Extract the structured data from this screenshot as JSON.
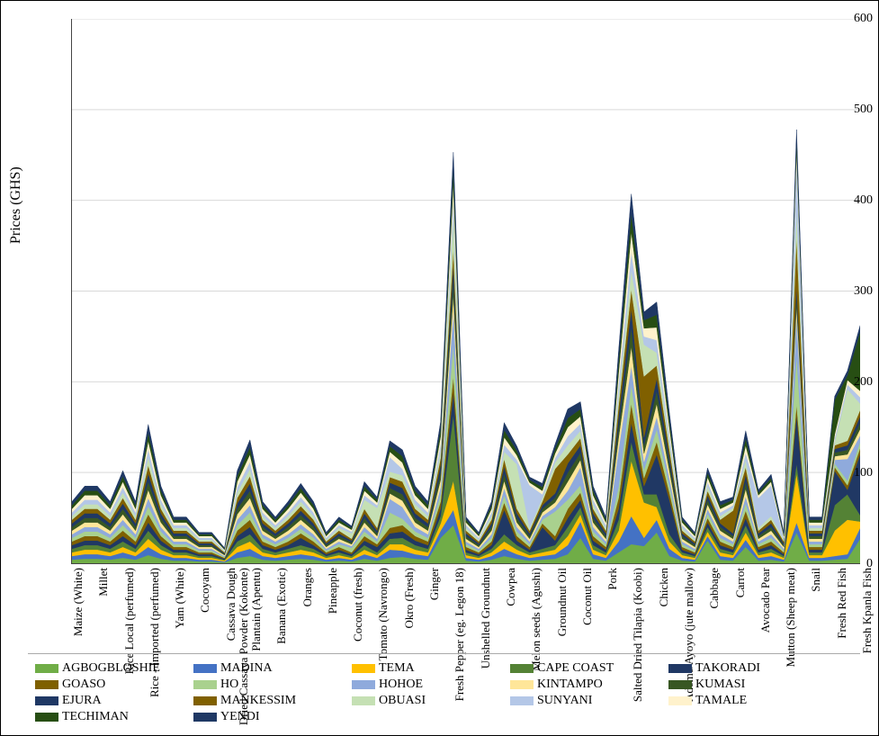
{
  "chart": {
    "type": "stacked-area",
    "y_axis": {
      "title": "Prices  (GHS)",
      "min": 0,
      "max": 600,
      "ticks": [
        0,
        100,
        200,
        300,
        400,
        500,
        600
      ],
      "title_fontsize": 16,
      "tick_fontsize": 14
    },
    "x_axis": {
      "tick_rotation": -90,
      "tick_fontsize": 13
    },
    "background_color": "#ffffff",
    "grid_color": "#d9d9d9",
    "categories": [
      "Maize (White)",
      "",
      "Millet",
      "",
      "Rice Local (perfumed)",
      "",
      "Rice - Imported (perfumed)",
      "",
      "Yam (White)",
      "",
      "Cocoyam",
      "",
      "Cassava Dough",
      "Dried Cassava Powder (Kokonte)",
      "Plantain (Apentu)",
      "",
      "Banana (Exotic)",
      "",
      "Oranges",
      "",
      "Pineapple",
      "",
      "Coconut (fresh)",
      "",
      "Tomato (Navrongo)",
      "",
      "Okro (Fresh)",
      "",
      "Ginger",
      "",
      "Fresh Pepper (eg. Legon 18)",
      "",
      "Unshelled Groundnut",
      "",
      "Cowpea",
      "",
      "Melon seeds (Agushi)",
      "",
      "Groundnut Oil",
      "",
      "Coconut Oil",
      "",
      "Pork",
      "",
      "Salted Dried Tilapia (Koobi)",
      "",
      "Chicken",
      "",
      "Ademe/Ayoyo (jute mallow)",
      "",
      "Cabbage",
      "",
      "Carrot",
      "",
      "Avocado Pear",
      "",
      "Mutton (Sheep meat)",
      "",
      "Snail",
      "",
      "Fresh Red Fish",
      "",
      "Fresh Kpanla Fish"
    ],
    "series": [
      {
        "name": "AGBOGBLOSHIE",
        "color": "#70ad47",
        "marker": "square",
        "values": [
          4,
          5,
          5,
          4,
          6,
          4,
          9,
          5,
          3,
          3,
          2,
          2,
          1,
          6,
          8,
          4,
          3,
          4,
          5,
          4,
          2,
          3,
          2,
          5,
          3,
          6,
          7,
          5,
          4,
          28,
          42,
          3,
          2,
          4,
          8,
          5,
          3,
          4,
          5,
          10,
          28,
          5,
          3,
          12,
          21,
          19,
          34,
          8,
          3,
          2,
          25,
          4,
          3,
          18,
          3,
          4,
          2,
          34,
          3,
          3,
          4,
          5,
          27
        ]
      },
      {
        "name": "MADINA",
        "color": "#4472c4",
        "marker": "square",
        "values": [
          4,
          5,
          5,
          4,
          6,
          4,
          9,
          5,
          3,
          3,
          2,
          2,
          1,
          6,
          8,
          4,
          3,
          4,
          5,
          4,
          2,
          3,
          2,
          5,
          3,
          9,
          7,
          5,
          4,
          8,
          17,
          3,
          2,
          4,
          8,
          5,
          3,
          4,
          5,
          10,
          18,
          5,
          3,
          12,
          31,
          9,
          14,
          8,
          3,
          2,
          5,
          4,
          3,
          8,
          3,
          4,
          2,
          11,
          3,
          3,
          4,
          5,
          12
        ]
      },
      {
        "name": "TEMA",
        "color": "#ffc000",
        "marker": "square",
        "values": [
          4,
          5,
          5,
          4,
          6,
          4,
          9,
          5,
          3,
          3,
          2,
          2,
          1,
          6,
          8,
          4,
          3,
          4,
          5,
          4,
          2,
          3,
          2,
          5,
          3,
          6,
          7,
          5,
          4,
          8,
          32,
          3,
          2,
          4,
          8,
          5,
          3,
          4,
          5,
          10,
          8,
          5,
          3,
          12,
          61,
          39,
          14,
          8,
          3,
          2,
          5,
          4,
          3,
          8,
          3,
          4,
          2,
          54,
          3,
          3,
          28,
          38,
          7
        ]
      },
      {
        "name": "CAPE COAST",
        "color": "#548235",
        "marker": "square",
        "values": [
          4,
          5,
          5,
          4,
          6,
          4,
          9,
          5,
          3,
          3,
          2,
          2,
          1,
          6,
          8,
          4,
          3,
          4,
          5,
          4,
          2,
          3,
          2,
          5,
          3,
          6,
          7,
          5,
          4,
          8,
          73,
          3,
          2,
          4,
          8,
          5,
          3,
          4,
          5,
          10,
          8,
          5,
          3,
          12,
          21,
          9,
          14,
          8,
          3,
          2,
          5,
          4,
          3,
          8,
          3,
          4,
          2,
          11,
          3,
          3,
          28,
          28,
          7
        ]
      },
      {
        "name": "TAKORADI",
        "color": "#203864",
        "marker": "square",
        "values": [
          4,
          5,
          5,
          4,
          6,
          4,
          9,
          5,
          3,
          3,
          2,
          2,
          1,
          6,
          8,
          4,
          3,
          4,
          8,
          4,
          2,
          3,
          2,
          5,
          6,
          6,
          7,
          5,
          4,
          8,
          25,
          3,
          2,
          4,
          27,
          5,
          3,
          24,
          5,
          10,
          8,
          5,
          3,
          12,
          21,
          9,
          44,
          38,
          3,
          2,
          5,
          4,
          3,
          8,
          3,
          4,
          2,
          54,
          3,
          3,
          38,
          5,
          67
        ]
      },
      {
        "name": "GOASO",
        "color": "#7f6000",
        "marker": "square",
        "values": [
          4,
          5,
          5,
          4,
          6,
          4,
          9,
          5,
          3,
          3,
          2,
          2,
          1,
          6,
          8,
          4,
          3,
          4,
          5,
          4,
          2,
          3,
          2,
          5,
          3,
          6,
          7,
          5,
          4,
          8,
          17,
          3,
          2,
          4,
          8,
          5,
          3,
          4,
          5,
          10,
          8,
          5,
          3,
          12,
          21,
          9,
          14,
          8,
          3,
          2,
          5,
          4,
          3,
          8,
          3,
          4,
          2,
          11,
          3,
          3,
          4,
          5,
          7
        ]
      },
      {
        "name": "HO",
        "color": "#a9d18e",
        "marker": "square",
        "values": [
          4,
          5,
          5,
          4,
          6,
          4,
          9,
          5,
          3,
          3,
          2,
          2,
          1,
          6,
          8,
          4,
          3,
          4,
          5,
          4,
          2,
          3,
          5,
          5,
          3,
          17,
          7,
          5,
          4,
          8,
          35,
          3,
          2,
          4,
          8,
          5,
          3,
          4,
          27,
          10,
          8,
          5,
          3,
          12,
          21,
          9,
          14,
          8,
          3,
          2,
          5,
          4,
          3,
          8,
          3,
          4,
          2,
          54,
          3,
          3,
          4,
          5,
          7
        ]
      },
      {
        "name": "HOHOE",
        "color": "#8faadc",
        "marker": "square",
        "values": [
          4,
          5,
          5,
          4,
          6,
          4,
          9,
          5,
          3,
          3,
          2,
          2,
          1,
          6,
          8,
          4,
          3,
          4,
          5,
          4,
          2,
          3,
          2,
          5,
          3,
          15,
          13,
          5,
          4,
          8,
          38,
          3,
          2,
          4,
          8,
          5,
          3,
          4,
          5,
          10,
          20,
          5,
          3,
          42,
          21,
          9,
          14,
          8,
          3,
          2,
          5,
          4,
          3,
          8,
          3,
          4,
          2,
          44,
          3,
          3,
          4,
          24,
          7
        ]
      },
      {
        "name": "KINTAMPO",
        "color": "#ffe699",
        "marker": "square",
        "values": [
          4,
          5,
          5,
          4,
          6,
          4,
          9,
          5,
          3,
          3,
          2,
          2,
          1,
          6,
          8,
          4,
          3,
          4,
          5,
          4,
          2,
          3,
          2,
          5,
          3,
          6,
          7,
          5,
          4,
          8,
          17,
          3,
          2,
          4,
          8,
          5,
          3,
          4,
          5,
          10,
          8,
          5,
          3,
          12,
          21,
          9,
          14,
          8,
          3,
          2,
          5,
          4,
          3,
          8,
          3,
          4,
          2,
          11,
          3,
          3,
          4,
          5,
          7
        ]
      },
      {
        "name": "KUMASI",
        "color": "#385723",
        "marker": "square",
        "values": [
          4,
          5,
          5,
          4,
          6,
          4,
          9,
          5,
          3,
          3,
          2,
          2,
          1,
          6,
          8,
          4,
          3,
          4,
          5,
          4,
          2,
          3,
          2,
          5,
          3,
          6,
          7,
          5,
          4,
          8,
          17,
          3,
          2,
          4,
          8,
          5,
          3,
          4,
          5,
          10,
          8,
          5,
          3,
          12,
          21,
          9,
          14,
          8,
          3,
          2,
          5,
          4,
          3,
          8,
          3,
          4,
          2,
          11,
          3,
          3,
          4,
          5,
          7
        ]
      },
      {
        "name": "EJURA",
        "color": "#1f3864",
        "marker": "square",
        "values": [
          4,
          5,
          5,
          4,
          6,
          4,
          9,
          5,
          3,
          3,
          2,
          2,
          1,
          6,
          8,
          4,
          3,
          4,
          5,
          4,
          2,
          3,
          2,
          5,
          3,
          6,
          7,
          5,
          4,
          8,
          17,
          3,
          2,
          4,
          8,
          5,
          3,
          4,
          5,
          10,
          8,
          5,
          3,
          12,
          21,
          9,
          14,
          8,
          3,
          2,
          5,
          4,
          3,
          8,
          3,
          4,
          2,
          11,
          3,
          3,
          4,
          5,
          7
        ]
      },
      {
        "name": "MANKESSIM",
        "color": "#806000",
        "marker": "square",
        "values": [
          4,
          5,
          5,
          4,
          6,
          4,
          9,
          5,
          3,
          3,
          2,
          2,
          1,
          6,
          8,
          4,
          3,
          4,
          5,
          4,
          2,
          3,
          2,
          5,
          3,
          6,
          7,
          5,
          4,
          8,
          17,
          3,
          2,
          4,
          8,
          5,
          3,
          4,
          27,
          10,
          8,
          5,
          3,
          12,
          21,
          67,
          14,
          8,
          3,
          2,
          5,
          4,
          25,
          8,
          3,
          4,
          2,
          54,
          3,
          3,
          4,
          5,
          7
        ]
      },
      {
        "name": "OBUASI",
        "color": "#c5e0b4",
        "marker": "square",
        "values": [
          4,
          5,
          5,
          4,
          6,
          4,
          9,
          5,
          3,
          3,
          2,
          2,
          1,
          6,
          8,
          4,
          3,
          4,
          5,
          4,
          2,
          3,
          6,
          10,
          22,
          6,
          7,
          5,
          4,
          8,
          38,
          3,
          2,
          4,
          8,
          49,
          3,
          4,
          7,
          10,
          8,
          5,
          3,
          12,
          21,
          35,
          14,
          8,
          3,
          2,
          5,
          4,
          3,
          8,
          3,
          4,
          2,
          31,
          3,
          3,
          4,
          57,
          7
        ]
      },
      {
        "name": "SUNYANI",
        "color": "#b4c7e7",
        "marker": "square",
        "values": [
          4,
          5,
          5,
          4,
          6,
          4,
          9,
          5,
          3,
          3,
          2,
          2,
          1,
          6,
          8,
          4,
          3,
          4,
          5,
          4,
          2,
          3,
          2,
          5,
          3,
          16,
          7,
          5,
          4,
          8,
          17,
          3,
          2,
          4,
          8,
          5,
          47,
          4,
          5,
          10,
          8,
          5,
          3,
          12,
          21,
          9,
          14,
          8,
          3,
          2,
          5,
          4,
          3,
          8,
          33,
          34,
          2,
          54,
          3,
          3,
          4,
          5,
          7
        ]
      },
      {
        "name": "TAMALE",
        "color": "#fff2cc",
        "marker": "square",
        "values": [
          4,
          5,
          5,
          4,
          6,
          4,
          9,
          5,
          3,
          3,
          2,
          2,
          1,
          6,
          8,
          4,
          3,
          4,
          5,
          4,
          2,
          3,
          2,
          5,
          3,
          6,
          7,
          5,
          4,
          8,
          17,
          3,
          2,
          4,
          8,
          5,
          3,
          4,
          5,
          10,
          8,
          5,
          3,
          12,
          21,
          9,
          14,
          8,
          3,
          2,
          5,
          4,
          3,
          8,
          3,
          4,
          2,
          11,
          3,
          3,
          4,
          5,
          7
        ]
      },
      {
        "name": "TECHIMAN",
        "color": "#274e13",
        "marker": "square",
        "values": [
          4,
          5,
          5,
          4,
          6,
          4,
          9,
          5,
          3,
          3,
          2,
          2,
          1,
          6,
          8,
          4,
          3,
          4,
          5,
          4,
          2,
          3,
          2,
          5,
          3,
          6,
          7,
          5,
          4,
          8,
          17,
          3,
          2,
          4,
          8,
          5,
          3,
          4,
          5,
          10,
          8,
          5,
          3,
          12,
          21,
          9,
          14,
          8,
          3,
          2,
          5,
          4,
          3,
          8,
          3,
          4,
          2,
          11,
          3,
          3,
          38,
          5,
          65
        ]
      },
      {
        "name": "YENDI",
        "color": "#1f3864",
        "marker": "square",
        "values": [
          4,
          5,
          5,
          4,
          6,
          4,
          9,
          5,
          3,
          3,
          2,
          2,
          1,
          6,
          8,
          4,
          3,
          4,
          5,
          4,
          2,
          3,
          2,
          5,
          3,
          6,
          7,
          5,
          4,
          8,
          17,
          3,
          2,
          4,
          8,
          5,
          3,
          4,
          5,
          10,
          8,
          5,
          3,
          12,
          21,
          9,
          14,
          8,
          3,
          2,
          5,
          4,
          3,
          8,
          3,
          4,
          2,
          11,
          3,
          3,
          4,
          5,
          7
        ]
      }
    ]
  }
}
